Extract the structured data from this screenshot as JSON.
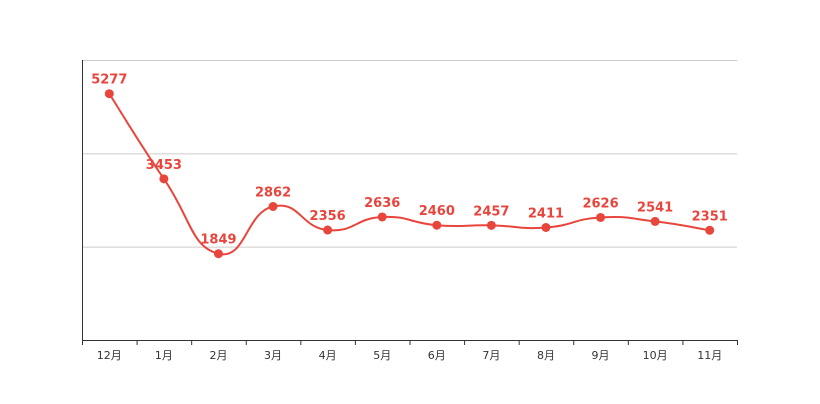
{
  "chart_data": {
    "type": "line",
    "categories": [
      "12月",
      "1月",
      "2月",
      "3月",
      "4月",
      "5月",
      "6月",
      "7月",
      "8月",
      "9月",
      "10月",
      "11月"
    ],
    "series": [
      {
        "values": [
          5277,
          3453,
          1849,
          2862,
          2356,
          2636,
          2460,
          2457,
          2411,
          2626,
          2541,
          2351
        ]
      }
    ],
    "ylim": [
      0,
      6000
    ],
    "grid": true,
    "smooth": true,
    "data_labels": true,
    "colors": {
      "line": "#e8453c",
      "grid": "#cccccc",
      "axis": "#333333",
      "tick_label": "#333333"
    }
  }
}
